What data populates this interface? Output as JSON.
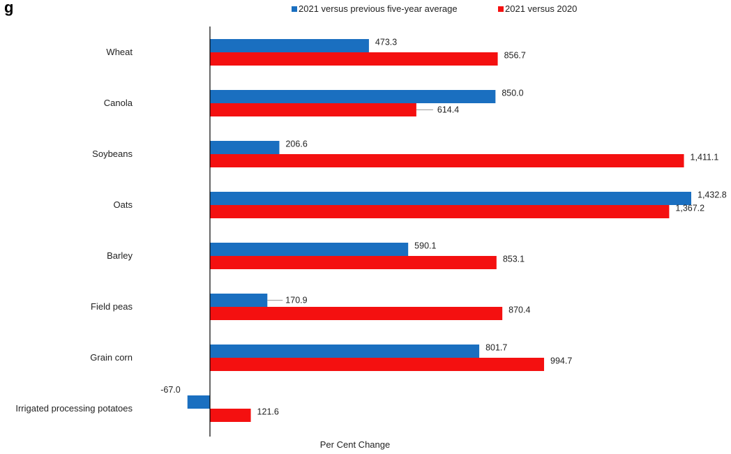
{
  "chart_data": {
    "type": "bar",
    "orientation": "horizontal",
    "title": "g",
    "xlabel": "Per Cent Change",
    "ylabel": "",
    "categories": [
      "Wheat",
      "Canola",
      "Soybeans",
      "Oats",
      "Barley",
      "Field peas",
      "Grain corn",
      "Irrigated processing potatoes"
    ],
    "series": [
      {
        "name": "2021 versus previous five-year average",
        "color": "#1a6fc0",
        "values": [
          473.3,
          850.0,
          206.6,
          1432.8,
          590.1,
          170.9,
          801.7,
          -67.0
        ],
        "labels": [
          "473.3",
          "850.0",
          "206.6",
          "1,432.8",
          "590.1",
          "170.9",
          "801.7",
          "-67.0"
        ]
      },
      {
        "name": "2021 versus 2020",
        "color": "#f41010",
        "values": [
          856.7,
          614.4,
          1411.1,
          1367.2,
          853.1,
          870.4,
          994.7,
          121.6
        ],
        "labels": [
          "856.7",
          "614.4",
          "1,411.1",
          "1,367.2",
          "853.1",
          "870.4",
          "994.7",
          "121.6"
        ]
      }
    ],
    "xlim": [
      -80,
      1440
    ],
    "legend_position": "top",
    "grid": false
  }
}
